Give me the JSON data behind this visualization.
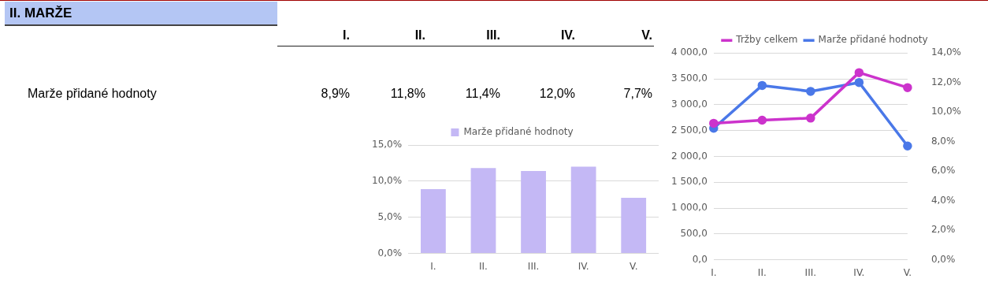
{
  "chart_data": [
    {
      "type": "other",
      "title": "II. MARŽE",
      "categories": [
        "I.",
        "II.",
        "III.",
        "IV.",
        "V."
      ],
      "series": [
        {
          "name": "Marže přidané hodnoty",
          "values": [
            8.9,
            11.8,
            11.4,
            12.0,
            7.7
          ],
          "value_labels": [
            "8,9%",
            "11,8%",
            "11,4%",
            "12,0%",
            "7,7%"
          ]
        }
      ]
    },
    {
      "type": "bar",
      "categories": [
        "I.",
        "II.",
        "III.",
        "IV.",
        "V."
      ],
      "series": [
        {
          "name": "Marže přidané hodnoty",
          "color": "#c4b8f5",
          "values": [
            8.9,
            11.8,
            11.4,
            12.0,
            7.7
          ]
        }
      ],
      "ylim": [
        0,
        15
      ],
      "yticks": [
        {
          "value": 0,
          "label": "0,0%"
        },
        {
          "value": 5,
          "label": "5,0%"
        },
        {
          "value": 10,
          "label": "10,0%"
        },
        {
          "value": 15,
          "label": "15,0%"
        }
      ],
      "grid": "y",
      "legend": "top"
    },
    {
      "type": "line",
      "categories": [
        "I.",
        "II.",
        "III.",
        "IV.",
        "V."
      ],
      "series": [
        {
          "name": "Tržby celkem",
          "color": "#cc33cc",
          "values": [
            2640,
            2700,
            2740,
            3620,
            3330
          ]
        },
        {
          "name": "Marže přidané hodnoty",
          "color": "#4a78e8",
          "axis": "y2",
          "values": [
            8.9,
            11.8,
            11.4,
            12.0,
            7.7
          ]
        }
      ],
      "ylim": [
        0,
        4000
      ],
      "yticks": [
        {
          "value": 0,
          "label": "0,0"
        },
        {
          "value": 500,
          "label": "500,0"
        },
        {
          "value": 1000,
          "label": "1 000,0"
        },
        {
          "value": 1500,
          "label": "1 500,0"
        },
        {
          "value": 2000,
          "label": "2 000,0"
        },
        {
          "value": 2500,
          "label": "2 500,0"
        },
        {
          "value": 3000,
          "label": "3 000,0"
        },
        {
          "value": 3500,
          "label": "3 500,0"
        },
        {
          "value": 4000,
          "label": "4 000,0"
        }
      ],
      "y2lim": [
        0,
        14
      ],
      "y2ticks": [
        {
          "value": 0,
          "label": "0,0%"
        },
        {
          "value": 2,
          "label": "2,0%"
        },
        {
          "value": 4,
          "label": "4,0%"
        },
        {
          "value": 6,
          "label": "6,0%"
        },
        {
          "value": 8,
          "label": "8,0%"
        },
        {
          "value": 10,
          "label": "10,0%"
        },
        {
          "value": 12,
          "label": "12,0%"
        },
        {
          "value": 14,
          "label": "14,0%"
        }
      ],
      "grid": "y",
      "legend": "top",
      "marker": "circle",
      "line_style": "solid"
    }
  ]
}
